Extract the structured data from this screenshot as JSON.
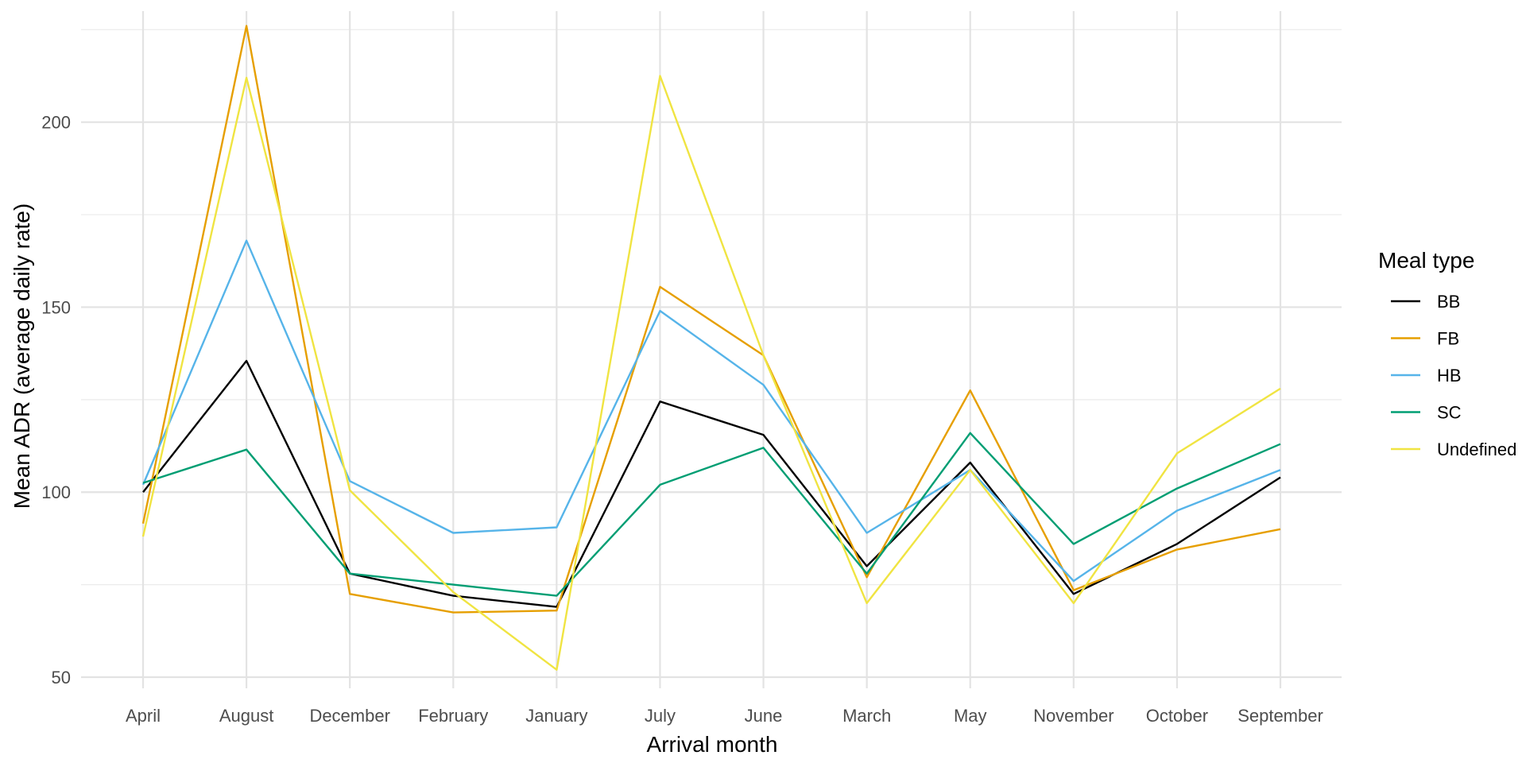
{
  "chart_data": {
    "type": "line",
    "xlabel": "Arrival month",
    "ylabel": "Mean ADR (average daily rate)",
    "categories": [
      "April",
      "August",
      "December",
      "February",
      "January",
      "July",
      "June",
      "March",
      "May",
      "November",
      "October",
      "September"
    ],
    "ylim": [
      47,
      230
    ],
    "yticks": [
      50,
      100,
      150,
      200
    ],
    "grid": true,
    "legend": {
      "title": "Meal type",
      "placement": "right"
    },
    "series": [
      {
        "name": "BB",
        "color": "#000000",
        "values": [
          100,
          135.5,
          78,
          72,
          69,
          124.5,
          115.5,
          80,
          108,
          72.5,
          86,
          104
        ]
      },
      {
        "name": "FB",
        "color": "#E69F00",
        "values": [
          91.5,
          226,
          72.5,
          67.5,
          68,
          155.5,
          137,
          77,
          127.5,
          73.5,
          84.5,
          90
        ]
      },
      {
        "name": "HB",
        "color": "#56B4E9",
        "values": [
          102,
          168,
          103,
          89,
          90.5,
          149,
          129,
          89,
          106,
          76,
          95,
          106
        ]
      },
      {
        "name": "SC",
        "color": "#009E73",
        "values": [
          102.5,
          111.5,
          78,
          75,
          72,
          102,
          112,
          78,
          116,
          86,
          101,
          113
        ]
      },
      {
        "name": "Undefined",
        "color": "#F0E442",
        "values": [
          88,
          212,
          100.5,
          73,
          52,
          212.5,
          137,
          70,
          106,
          70,
          110.5,
          128
        ]
      }
    ]
  }
}
